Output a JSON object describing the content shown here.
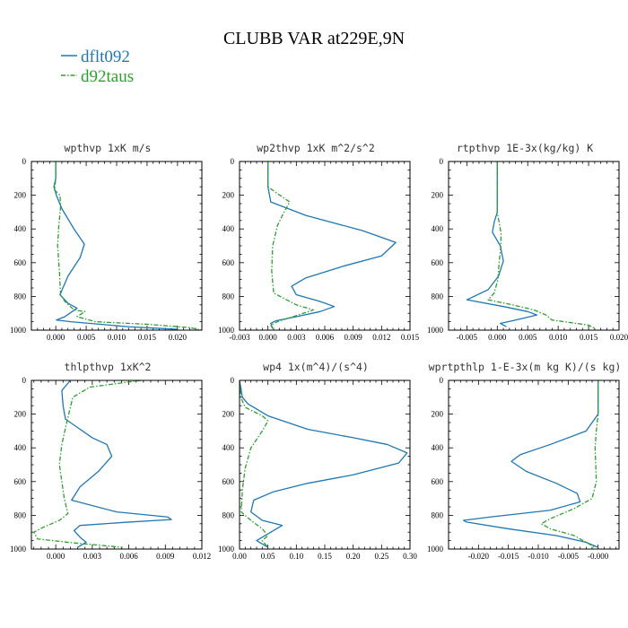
{
  "title": "CLUBB VAR at229E,9N",
  "colors": {
    "dflt092": "#1f77b4",
    "d92taus": "#2ca02c"
  },
  "legend": [
    {
      "name": "dflt092",
      "color": "#1f77b4",
      "dash": "solid"
    },
    {
      "name": "d92taus",
      "color": "#2ca02c",
      "dash": "dashdot"
    }
  ],
  "chart_data": [
    {
      "type": "line",
      "title": "wpthvp  1xK m/s",
      "xlim": [
        -0.004,
        0.024
      ],
      "xticks": [
        0.0,
        0.005,
        0.01,
        0.015,
        0.02
      ],
      "xtick_labels": [
        "0.000",
        "0.005",
        "0.010",
        "0.015",
        "0.020"
      ],
      "ylim": [
        0,
        1000
      ],
      "y_inverted": true,
      "yticks": [
        0,
        200,
        400,
        600,
        800,
        1000
      ],
      "series": [
        {
          "name": "dflt092",
          "points": [
            [
              0,
              0
            ],
            [
              0,
              100
            ],
            [
              -0.0003,
              150
            ],
            [
              0.0001,
              200
            ],
            [
              0.001,
              280
            ],
            [
              0.003,
              400
            ],
            [
              0.0047,
              490
            ],
            [
              0.004,
              570
            ],
            [
              0.002,
              680
            ],
            [
              0.0007,
              790
            ],
            [
              0.002,
              840
            ],
            [
              0.0035,
              870
            ],
            [
              0.0015,
              920
            ],
            [
              0.0001,
              940
            ],
            [
              0.0025,
              950
            ],
            [
              0.012,
              980
            ],
            [
              0.02,
              995
            ]
          ]
        },
        {
          "name": "d92taus",
          "points": [
            [
              0,
              0
            ],
            [
              0,
              100
            ],
            [
              -0.0002,
              170
            ],
            [
              0.0007,
              200
            ],
            [
              0.0008,
              270
            ],
            [
              0.0005,
              380
            ],
            [
              0.0003,
              500
            ],
            [
              0.0006,
              650
            ],
            [
              0.0008,
              790
            ],
            [
              0.0015,
              830
            ],
            [
              0.003,
              880
            ],
            [
              0.0048,
              890
            ],
            [
              0.0035,
              920
            ],
            [
              0.0065,
              950
            ],
            [
              0.015,
              965
            ],
            [
              0.022,
              985
            ],
            [
              0.024,
              1000
            ]
          ]
        }
      ]
    },
    {
      "type": "line",
      "title": "wp2thvp  1xK m^2/s^2",
      "xlim": [
        -0.003,
        0.015
      ],
      "xticks": [
        -0.003,
        0.0,
        0.003,
        0.006,
        0.009,
        0.012,
        0.015
      ],
      "xtick_labels": [
        "-0.003",
        "0.000",
        "0.003",
        "0.006",
        "0.009",
        "0.012",
        "0.015"
      ],
      "ylim": [
        0,
        1000
      ],
      "y_inverted": true,
      "yticks": [
        0,
        200,
        400,
        600,
        800,
        1000
      ],
      "series": [
        {
          "name": "dflt092",
          "points": [
            [
              0,
              0
            ],
            [
              0,
              150
            ],
            [
              0.0003,
              240
            ],
            [
              0.004,
              320
            ],
            [
              0.01,
              410
            ],
            [
              0.0135,
              480
            ],
            [
              0.012,
              560
            ],
            [
              0.008,
              620
            ],
            [
              0.004,
              690
            ],
            [
              0.0025,
              740
            ],
            [
              0.003,
              790
            ],
            [
              0.0055,
              830
            ],
            [
              0.007,
              860
            ],
            [
              0.0055,
              890
            ],
            [
              0.003,
              920
            ],
            [
              0.0008,
              945
            ],
            [
              0.0003,
              960
            ],
            [
              0.0005,
              990
            ]
          ]
        },
        {
          "name": "d92taus",
          "points": [
            [
              0,
              0
            ],
            [
              0,
              150
            ],
            [
              0.001,
              190
            ],
            [
              0.0023,
              240
            ],
            [
              0.0017,
              300
            ],
            [
              0.001,
              380
            ],
            [
              0.0005,
              500
            ],
            [
              0.0004,
              650
            ],
            [
              0.0006,
              780
            ],
            [
              0.003,
              850
            ],
            [
              0.0048,
              880
            ],
            [
              0.0032,
              910
            ],
            [
              0.001,
              950
            ],
            [
              0.0003,
              970
            ],
            [
              0.0005,
              990
            ]
          ]
        }
      ]
    },
    {
      "type": "line",
      "title": "rtpthvp  1E-3x(kg/kg) K",
      "xlim": [
        -0.008,
        0.02
      ],
      "xticks": [
        -0.005,
        0.0,
        0.005,
        0.01,
        0.015,
        0.02
      ],
      "xtick_labels": [
        "-0.005",
        "0.000",
        "0.005",
        "0.010",
        "0.015",
        "0.020"
      ],
      "ylim": [
        0,
        1000
      ],
      "y_inverted": true,
      "yticks": [
        0,
        200,
        400,
        600,
        800,
        1000
      ],
      "series": [
        {
          "name": "dflt092",
          "points": [
            [
              0,
              0
            ],
            [
              0,
              300
            ],
            [
              -0.0005,
              360
            ],
            [
              -0.0008,
              420
            ],
            [
              0.0005,
              500
            ],
            [
              0.001,
              590
            ],
            [
              0.0002,
              680
            ],
            [
              -0.0015,
              760
            ],
            [
              -0.005,
              820
            ],
            [
              0.001,
              860
            ],
            [
              0.005,
              890
            ],
            [
              0.0065,
              910
            ],
            [
              0.003,
              940
            ],
            [
              0.0005,
              960
            ],
            [
              0.0015,
              980
            ]
          ]
        },
        {
          "name": "d92taus",
          "points": [
            [
              0,
              0
            ],
            [
              0,
              300
            ],
            [
              0.0003,
              360
            ],
            [
              0.0006,
              420
            ],
            [
              0.0006,
              500
            ],
            [
              0.0003,
              600
            ],
            [
              0.0001,
              700
            ],
            [
              -0.0005,
              780
            ],
            [
              -0.0015,
              820
            ],
            [
              0.0025,
              850
            ],
            [
              0.006,
              880
            ],
            [
              0.008,
              910
            ],
            [
              0.009,
              940
            ],
            [
              0.015,
              970
            ],
            [
              0.016,
              990
            ]
          ]
        }
      ]
    },
    {
      "type": "line",
      "title": "thlpthvp  1xK^2",
      "xlim": [
        -0.002,
        0.012
      ],
      "xticks": [
        0.0,
        0.003,
        0.006,
        0.009,
        0.012
      ],
      "xtick_labels": [
        "0.000",
        "0.003",
        "0.006",
        "0.009",
        "0.012"
      ],
      "ylim": [
        0,
        1000
      ],
      "y_inverted": true,
      "yticks": [
        0,
        200,
        400,
        600,
        800,
        1000
      ],
      "series": [
        {
          "name": "dflt092",
          "points": [
            [
              0.0012,
              0
            ],
            [
              0.0005,
              60
            ],
            [
              0.0006,
              150
            ],
            [
              0.0008,
              230
            ],
            [
              0.002,
              290
            ],
            [
              0.003,
              340
            ],
            [
              0.0042,
              380
            ],
            [
              0.0046,
              450
            ],
            [
              0.0035,
              540
            ],
            [
              0.002,
              630
            ],
            [
              0.0013,
              710
            ],
            [
              0.005,
              780
            ],
            [
              0.0092,
              810
            ],
            [
              0.0095,
              825
            ],
            [
              0.006,
              840
            ],
            [
              0.002,
              860
            ],
            [
              0.0015,
              890
            ],
            [
              0.002,
              930
            ],
            [
              0.0025,
              960
            ],
            [
              0.0018,
              990
            ]
          ]
        },
        {
          "name": "d92taus",
          "points": [
            [
              0.007,
              0
            ],
            [
              0.0028,
              40
            ],
            [
              0.0014,
              100
            ],
            [
              0.0012,
              160
            ],
            [
              0.0009,
              250
            ],
            [
              0.0005,
              380
            ],
            [
              0.0003,
              500
            ],
            [
              0.0005,
              600
            ],
            [
              0.0007,
              700
            ],
            [
              0.001,
              790
            ],
            [
              0.0003,
              830
            ],
            [
              -0.001,
              870
            ],
            [
              -0.0018,
              900
            ],
            [
              -0.0015,
              940
            ],
            [
              0.001,
              960
            ],
            [
              0.0055,
              990
            ]
          ]
        }
      ]
    },
    {
      "type": "line",
      "title": "wp4  1x(m^4)/(s^4)",
      "xlim": [
        0.0,
        0.3
      ],
      "xticks": [
        0.0,
        0.05,
        0.1,
        0.15,
        0.2,
        0.25,
        0.3
      ],
      "xtick_labels": [
        "0.00",
        "0.05",
        "0.10",
        "0.15",
        "0.20",
        "0.25",
        "0.30"
      ],
      "ylim": [
        0,
        1000
      ],
      "y_inverted": true,
      "yticks": [
        0,
        200,
        400,
        600,
        800,
        1000
      ],
      "series": [
        {
          "name": "dflt092",
          "points": [
            [
              0,
              0
            ],
            [
              0.005,
              100
            ],
            [
              0.015,
              140
            ],
            [
              0.05,
              210
            ],
            [
              0.12,
              290
            ],
            [
              0.2,
              340
            ],
            [
              0.26,
              380
            ],
            [
              0.295,
              430
            ],
            [
              0.28,
              490
            ],
            [
              0.2,
              560
            ],
            [
              0.12,
              610
            ],
            [
              0.06,
              660
            ],
            [
              0.025,
              710
            ],
            [
              0.02,
              780
            ],
            [
              0.04,
              830
            ],
            [
              0.075,
              860
            ],
            [
              0.06,
              890
            ],
            [
              0.03,
              950
            ],
            [
              0.05,
              990
            ]
          ]
        },
        {
          "name": "d92taus",
          "points": [
            [
              0,
              0
            ],
            [
              0.002,
              100
            ],
            [
              0.01,
              160
            ],
            [
              0.04,
              210
            ],
            [
              0.05,
              240
            ],
            [
              0.04,
              300
            ],
            [
              0.02,
              400
            ],
            [
              0.01,
              520
            ],
            [
              0.005,
              650
            ],
            [
              0.003,
              780
            ],
            [
              0.02,
              830
            ],
            [
              0.04,
              880
            ],
            [
              0.05,
              920
            ],
            [
              0.04,
              950
            ],
            [
              0.05,
              990
            ]
          ]
        }
      ]
    },
    {
      "type": "line",
      "title": "wprtpthlp  1-E-3x(m kg K)/(s kg)",
      "xlim": [
        -0.025,
        0.0035
      ],
      "xticks": [
        -0.02,
        -0.015,
        -0.01,
        -0.005,
        0.0
      ],
      "xtick_labels": [
        "-0.020",
        "-0.015",
        "-0.010",
        "-0.005",
        "-0.000"
      ],
      "ylim": [
        0,
        1000
      ],
      "y_inverted": true,
      "yticks": [
        0,
        200,
        400,
        600,
        800,
        1000
      ],
      "series": [
        {
          "name": "dflt092",
          "points": [
            [
              0,
              0
            ],
            [
              0,
              200
            ],
            [
              -0.002,
              300
            ],
            [
              -0.008,
              380
            ],
            [
              -0.013,
              440
            ],
            [
              -0.0145,
              480
            ],
            [
              -0.012,
              540
            ],
            [
              -0.007,
              610
            ],
            [
              -0.0035,
              670
            ],
            [
              -0.003,
              720
            ],
            [
              -0.008,
              770
            ],
            [
              -0.018,
              810
            ],
            [
              -0.0225,
              830
            ],
            [
              -0.022,
              840
            ],
            [
              -0.015,
              880
            ],
            [
              -0.007,
              920
            ],
            [
              -0.002,
              960
            ],
            [
              0,
              990
            ]
          ]
        },
        {
          "name": "d92taus",
          "points": [
            [
              0,
              0
            ],
            [
              0,
              200
            ],
            [
              -0.0003,
              300
            ],
            [
              -0.0005,
              400
            ],
            [
              -0.0003,
              600
            ],
            [
              -0.001,
              700
            ],
            [
              -0.004,
              760
            ],
            [
              -0.008,
              820
            ],
            [
              -0.0095,
              850
            ],
            [
              -0.008,
              880
            ],
            [
              -0.004,
              920
            ],
            [
              -0.002,
              960
            ],
            [
              -0.0005,
              990
            ]
          ]
        }
      ]
    }
  ]
}
